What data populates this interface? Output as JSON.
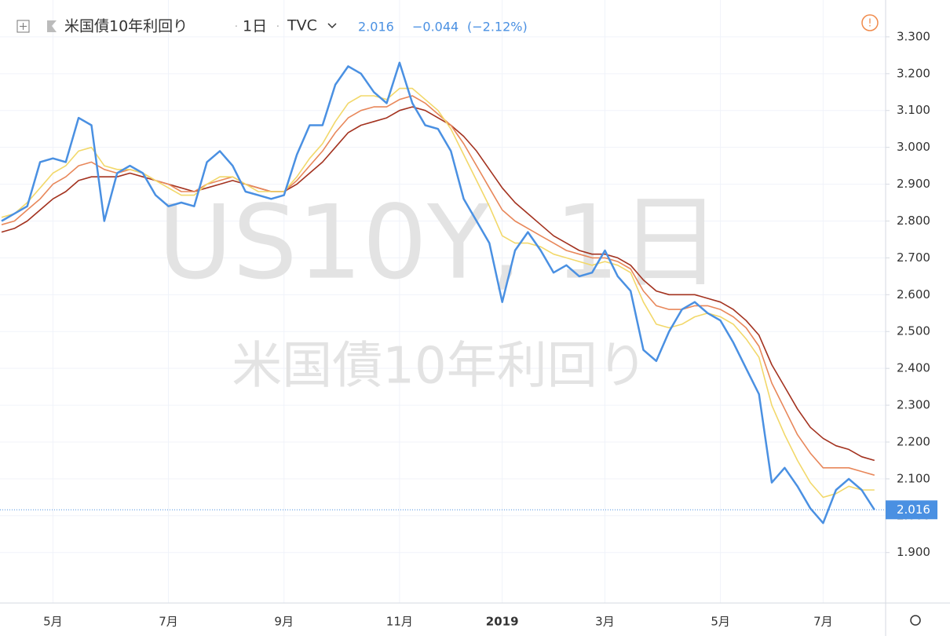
{
  "chart_data": {
    "type": "line",
    "title": "米国債10年利回り",
    "interval": "1日",
    "source": "TVC",
    "change": "−0.044",
    "change_percent": "(−2.12%)",
    "watermark": "US10Y, 1日",
    "categories": [
      null,
      null,
      null,
      null,
      "5月",
      null,
      null,
      null,
      null,
      null,
      null,
      null,
      null,
      "7月",
      null,
      null,
      null,
      null,
      null,
      null,
      null,
      null,
      "9月",
      null,
      null,
      null,
      null,
      null,
      null,
      null,
      null,
      "11月",
      null,
      null,
      null,
      null,
      null,
      null,
      null,
      "2019",
      null,
      null,
      null,
      null,
      null,
      null,
      null,
      "3月",
      null,
      null,
      null,
      null,
      null,
      null,
      null,
      null,
      "5月",
      null,
      null,
      null,
      null,
      null,
      null,
      null,
      "7月",
      null,
      null,
      null,
      null
    ],
    "series": [
      {
        "name": "米国債10年利回り",
        "color": "#4a90e2",
        "values": [
          2.8,
          2.82,
          2.84,
          2.96,
          2.97,
          2.96,
          3.08,
          3.06,
          2.8,
          2.93,
          2.95,
          2.93,
          2.87,
          2.84,
          2.85,
          2.84,
          2.96,
          2.99,
          2.95,
          2.88,
          2.87,
          2.86,
          2.87,
          2.98,
          3.06,
          3.06,
          3.17,
          3.22,
          3.2,
          3.15,
          3.12,
          3.23,
          3.12,
          3.06,
          3.05,
          2.99,
          2.86,
          2.8,
          2.74,
          2.58,
          2.72,
          2.77,
          2.72,
          2.66,
          2.68,
          2.65,
          2.66,
          2.72,
          2.65,
          2.61,
          2.45,
          2.42,
          2.5,
          2.56,
          2.58,
          2.55,
          2.53,
          2.47,
          2.4,
          2.33,
          2.09,
          2.13,
          2.08,
          2.02,
          1.98,
          2.07,
          2.1,
          2.07,
          2.016
        ]
      },
      {
        "color": "#f2d86a",
        "values": [
          2.81,
          2.82,
          2.85,
          2.89,
          2.93,
          2.95,
          2.99,
          3.0,
          2.95,
          2.94,
          2.94,
          2.93,
          2.91,
          2.89,
          2.87,
          2.87,
          2.9,
          2.92,
          2.92,
          2.9,
          2.88,
          2.88,
          2.88,
          2.92,
          2.97,
          3.01,
          3.07,
          3.12,
          3.14,
          3.14,
          3.13,
          3.16,
          3.16,
          3.13,
          3.1,
          3.05,
          2.98,
          2.91,
          2.84,
          2.76,
          2.74,
          2.74,
          2.73,
          2.71,
          2.7,
          2.69,
          2.68,
          2.69,
          2.68,
          2.66,
          2.58,
          2.52,
          2.51,
          2.52,
          2.54,
          2.55,
          2.54,
          2.52,
          2.48,
          2.43,
          2.3,
          2.22,
          2.15,
          2.09,
          2.05,
          2.06,
          2.08,
          2.07,
          2.07
        ]
      },
      {
        "color": "#e8875a",
        "values": [
          2.79,
          2.8,
          2.83,
          2.86,
          2.9,
          2.92,
          2.95,
          2.96,
          2.94,
          2.93,
          2.94,
          2.93,
          2.91,
          2.9,
          2.88,
          2.88,
          2.9,
          2.91,
          2.92,
          2.9,
          2.89,
          2.88,
          2.88,
          2.91,
          2.95,
          2.99,
          3.04,
          3.08,
          3.1,
          3.11,
          3.11,
          3.13,
          3.14,
          3.12,
          3.09,
          3.06,
          3.01,
          2.95,
          2.89,
          2.83,
          2.8,
          2.78,
          2.76,
          2.74,
          2.72,
          2.71,
          2.7,
          2.7,
          2.69,
          2.67,
          2.61,
          2.57,
          2.56,
          2.56,
          2.57,
          2.57,
          2.56,
          2.54,
          2.51,
          2.46,
          2.36,
          2.29,
          2.22,
          2.17,
          2.13,
          2.13,
          2.13,
          2.12,
          2.11
        ]
      },
      {
        "color": "#a3321f",
        "values": [
          2.77,
          2.78,
          2.8,
          2.83,
          2.86,
          2.88,
          2.91,
          2.92,
          2.92,
          2.92,
          2.93,
          2.92,
          2.91,
          2.9,
          2.89,
          2.88,
          2.89,
          2.9,
          2.91,
          2.9,
          2.89,
          2.88,
          2.88,
          2.9,
          2.93,
          2.96,
          3.0,
          3.04,
          3.06,
          3.07,
          3.08,
          3.1,
          3.11,
          3.1,
          3.08,
          3.06,
          3.03,
          2.99,
          2.94,
          2.89,
          2.85,
          2.82,
          2.79,
          2.76,
          2.74,
          2.72,
          2.71,
          2.71,
          2.7,
          2.68,
          2.64,
          2.61,
          2.6,
          2.6,
          2.6,
          2.59,
          2.58,
          2.56,
          2.53,
          2.49,
          2.41,
          2.35,
          2.29,
          2.24,
          2.21,
          2.19,
          2.18,
          2.16,
          2.15
        ]
      }
    ],
    "ylim": [
      1.763,
      3.4
    ],
    "yticks": [
      {
        "value": 1.9,
        "label": "1.900"
      },
      {
        "value": 2.0,
        "label": "2.000"
      },
      {
        "value": 2.1,
        "label": "2.100"
      },
      {
        "value": 2.2,
        "label": "2.200"
      },
      {
        "value": 2.3,
        "label": "2.300"
      },
      {
        "value": 2.4,
        "label": "2.400"
      },
      {
        "value": 2.5,
        "label": "2.500"
      },
      {
        "value": 2.6,
        "label": "2.600"
      },
      {
        "value": 2.7,
        "label": "2.700"
      },
      {
        "value": 2.8,
        "label": "2.800"
      },
      {
        "value": 2.9,
        "label": "2.900"
      },
      {
        "value": 3.0,
        "label": "3.000"
      },
      {
        "value": 3.1,
        "label": "3.100"
      },
      {
        "value": 3.2,
        "label": "3.200"
      },
      {
        "value": 3.3,
        "label": "3.300"
      }
    ],
    "grid": true
  }
}
